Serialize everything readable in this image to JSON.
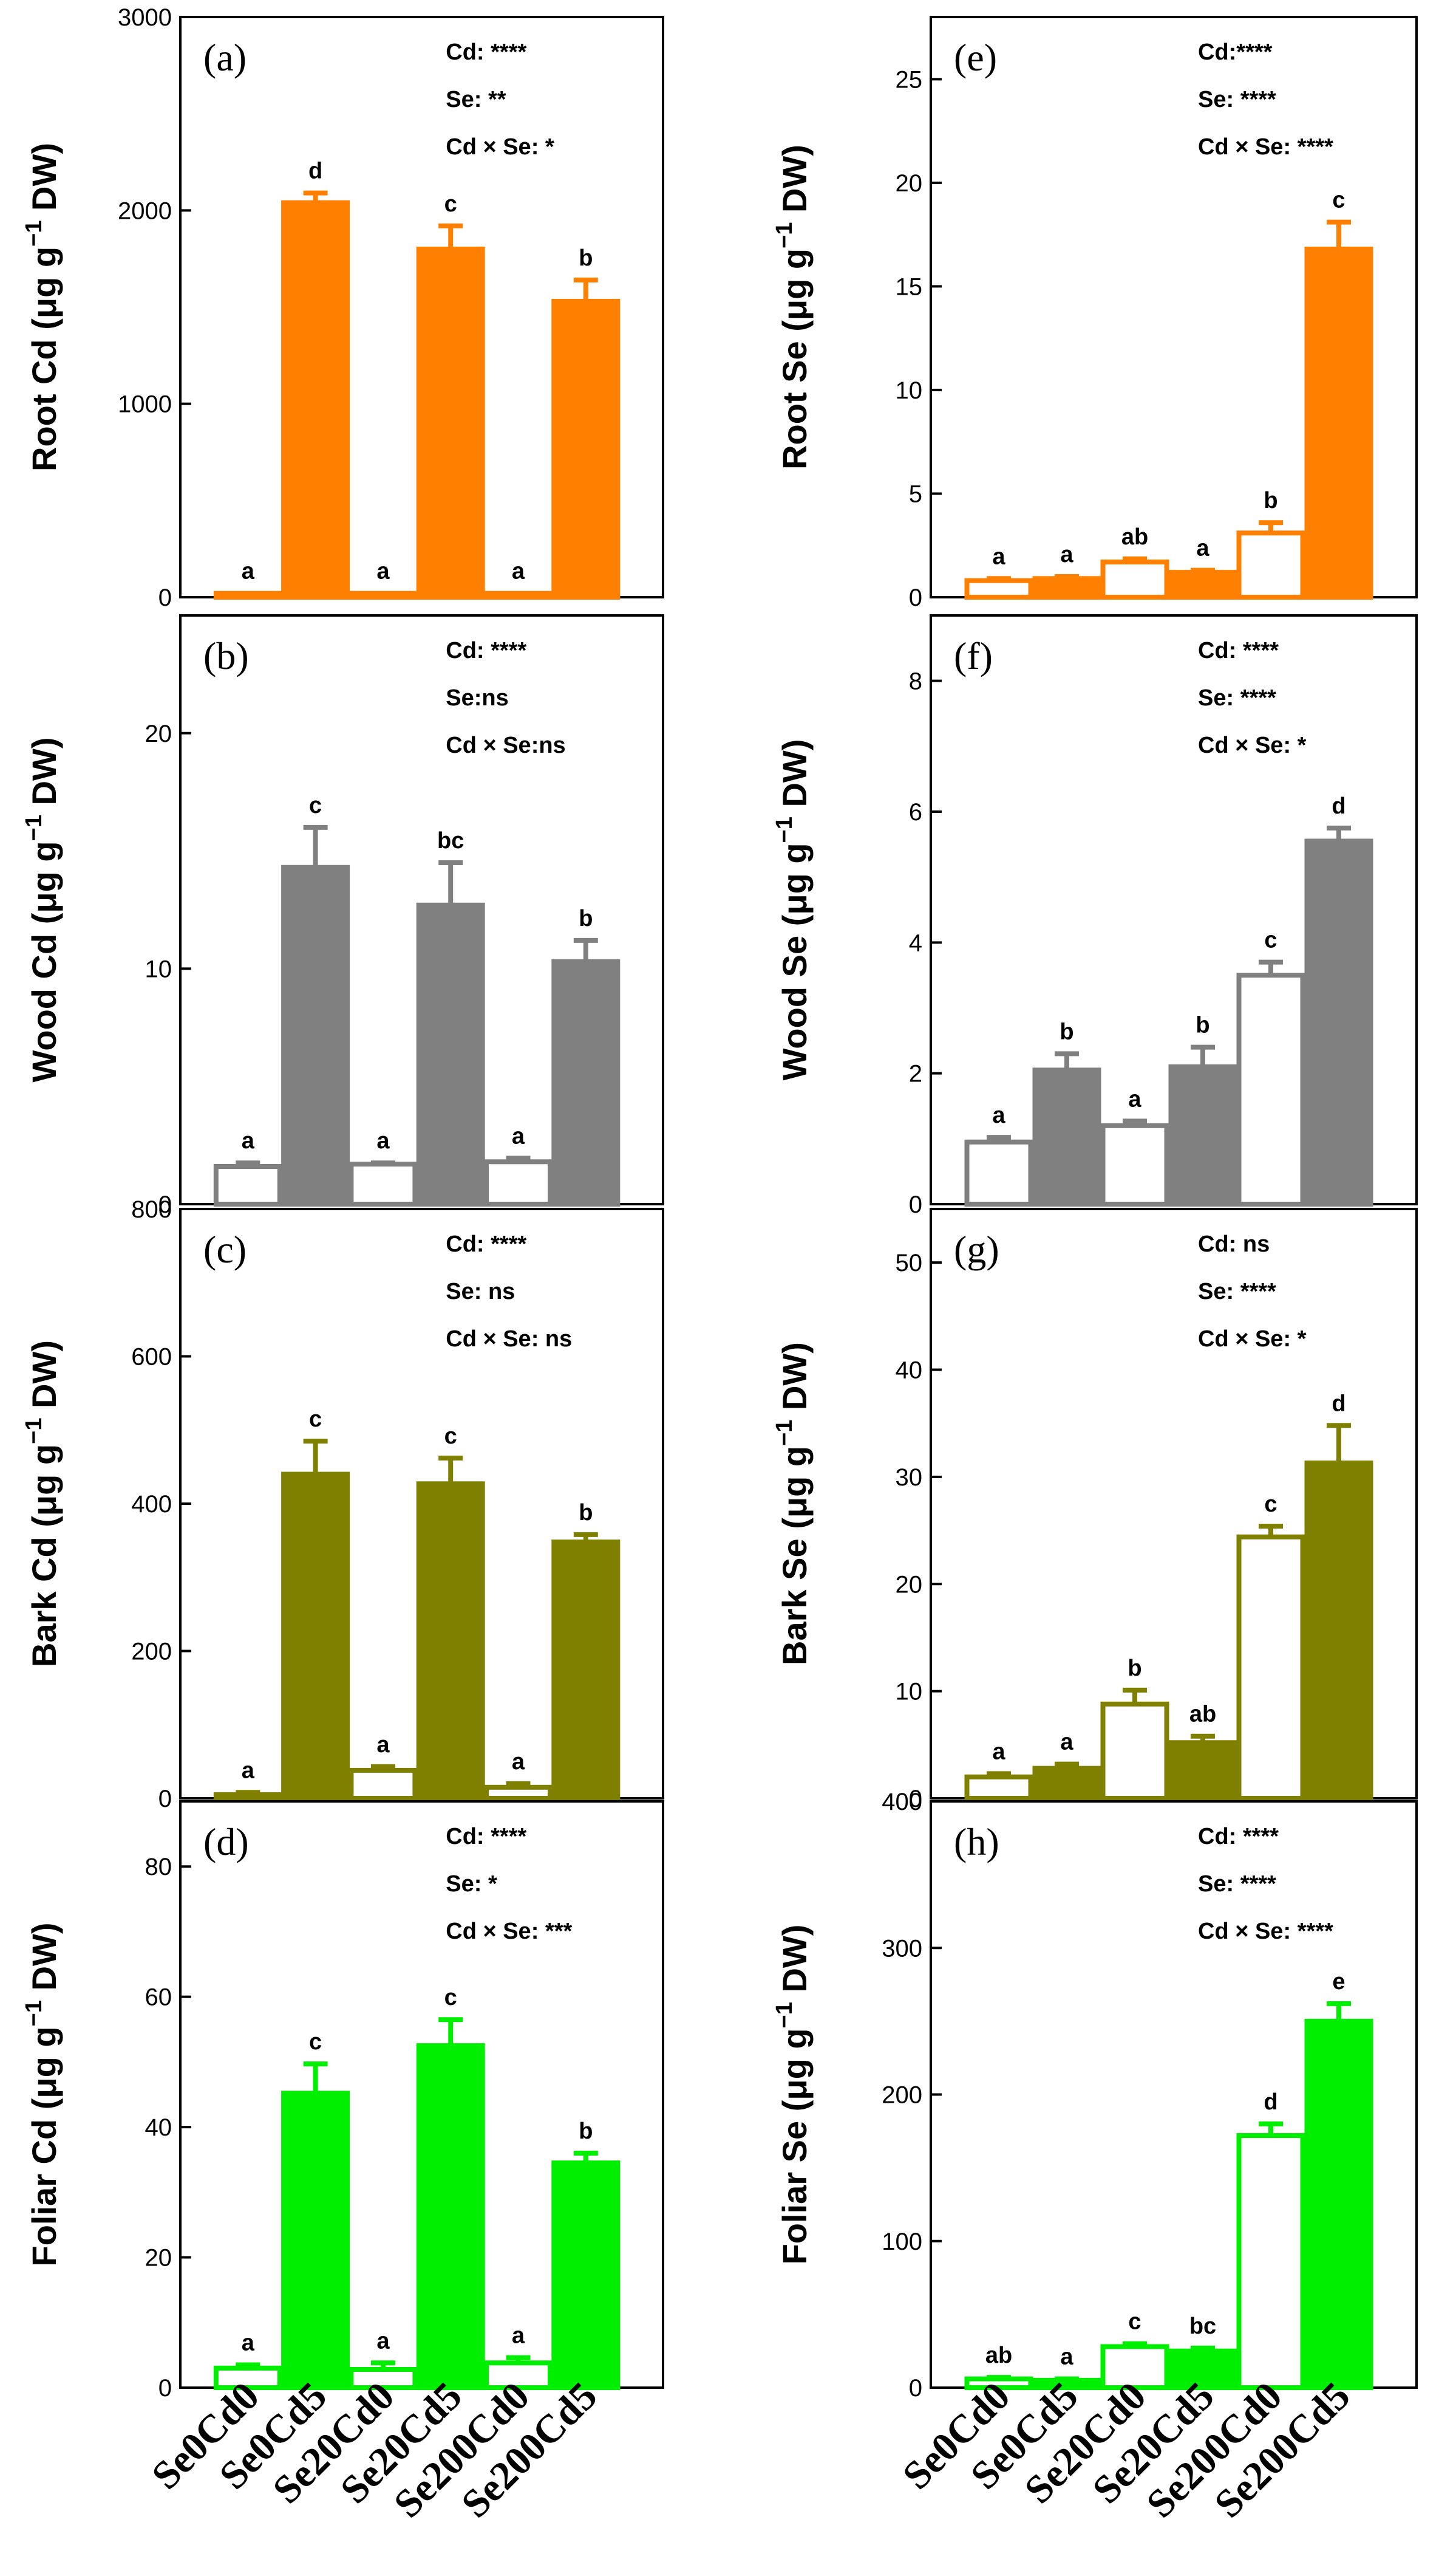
{
  "chart_data": [
    {
      "panel": "a",
      "type": "bar",
      "title": "(a)",
      "ylabel_pre": "Root Cd (",
      "ylabel_unit": "μg g",
      "ylabel_exp": "−1",
      "ylabel_post": " DW)",
      "ylim": [
        0,
        3000
      ],
      "yticks": [
        0,
        1000,
        2000,
        3000
      ],
      "categories": [
        "Se0Cd0",
        "Se0Cd5",
        "Se20Cd0",
        "Se20Cd5",
        "Se200Cd0",
        "Se200Cd5"
      ],
      "values": [
        20,
        2040,
        20,
        1800,
        20,
        1530
      ],
      "errors": [
        0,
        50,
        0,
        120,
        0,
        110
      ],
      "letters": [
        "a",
        "d",
        "a",
        "c",
        "a",
        "b"
      ],
      "annotations": [
        "Cd: ****",
        "Se: **",
        "Cd × Se: *"
      ],
      "color": "#ff8000"
    },
    {
      "panel": "b",
      "type": "bar",
      "title": "(b)",
      "ylabel_pre": "Wood Cd (",
      "ylabel_unit": "μg g",
      "ylabel_exp": "−1",
      "ylabel_post": " DW)",
      "ylim": [
        0,
        25
      ],
      "yticks": [
        0,
        10,
        20
      ],
      "categories": [
        "Se0Cd0",
        "Se0Cd5",
        "Se20Cd0",
        "Se20Cd5",
        "Se200Cd0",
        "Se200Cd5"
      ],
      "values": [
        1.6,
        14.3,
        1.7,
        12.7,
        1.8,
        10.3
      ],
      "errors": [
        0.15,
        1.7,
        0.05,
        1.8,
        0.15,
        0.9
      ],
      "letters": [
        "a",
        "c",
        "a",
        "bc",
        "a",
        "b"
      ],
      "annotations": [
        "Cd: ****",
        "Se:ns",
        "Cd × Se:ns"
      ],
      "color": "#808080"
    },
    {
      "panel": "c",
      "type": "bar",
      "title": "(c)",
      "ylabel_pre": "Bark Cd (",
      "ylabel_unit": "μg g",
      "ylabel_exp": "−1",
      "ylabel_post": " DW)",
      "ylim": [
        0,
        800
      ],
      "yticks": [
        0,
        200,
        400,
        600,
        800
      ],
      "categories": [
        "Se0Cd0",
        "Se0Cd5",
        "Se20Cd0",
        "Se20Cd5",
        "Se200Cd0",
        "Se200Cd5"
      ],
      "values": [
        5,
        440,
        38,
        427,
        15,
        348
      ],
      "errors": [
        3,
        45,
        5,
        35,
        5,
        10
      ],
      "letters": [
        "a",
        "c",
        "a",
        "c",
        "a",
        "b"
      ],
      "annotations": [
        "Cd: ****",
        "Se: ns",
        "Cd × Se: ns"
      ],
      "color": "#808000"
    },
    {
      "panel": "d",
      "type": "bar",
      "title": "(d)",
      "ylabel_pre": "Foliar Cd (",
      "ylabel_unit": "μg g",
      "ylabel_exp": "−1",
      "ylabel_post": " DW)",
      "ylim": [
        0,
        90
      ],
      "yticks": [
        0,
        20,
        40,
        60,
        80
      ],
      "categories": [
        "Se0Cd0",
        "Se0Cd5",
        "Se20Cd0",
        "Se20Cd5",
        "Se200Cd0",
        "Se200Cd5"
      ],
      "values": [
        3.0,
        45.2,
        2.8,
        52.5,
        3.8,
        34.5
      ],
      "errors": [
        0.5,
        4.5,
        1.0,
        4.0,
        0.8,
        1.5
      ],
      "letters": [
        "a",
        "c",
        "a",
        "c",
        "a",
        "b"
      ],
      "annotations": [
        "Cd: ****",
        "Se: *",
        "Cd × Se: ***"
      ],
      "color": "#00ee00"
    },
    {
      "panel": "e",
      "type": "bar",
      "title": "(e)",
      "ylabel_pre": "Root Se (",
      "ylabel_unit": "μg g",
      "ylabel_exp": "−1",
      "ylabel_post": " DW)",
      "ylim": [
        0,
        28
      ],
      "yticks": [
        0,
        5,
        10,
        15,
        20,
        25
      ],
      "categories": [
        "Se0Cd0",
        "Se0Cd5",
        "Se20Cd0",
        "Se20Cd5",
        "Se200Cd0",
        "Se200Cd5"
      ],
      "values": [
        0.8,
        0.9,
        1.7,
        1.2,
        3.1,
        16.8
      ],
      "errors": [
        0.1,
        0.1,
        0.15,
        0.1,
        0.5,
        1.3
      ],
      "letters": [
        "a",
        "a",
        "ab",
        "a",
        "b",
        "c"
      ],
      "annotations": [
        "Cd:****",
        "Se: ****",
        "Cd × Se: ****"
      ],
      "color": "#ff8000"
    },
    {
      "panel": "f",
      "type": "bar",
      "title": "(f)",
      "ylabel_pre": "Wood Se (",
      "ylabel_unit": "μg g",
      "ylabel_exp": "−1",
      "ylabel_post": " DW)",
      "ylim": [
        0,
        9
      ],
      "yticks": [
        0,
        2,
        4,
        6,
        8
      ],
      "categories": [
        "Se0Cd0",
        "Se0Cd5",
        "Se20Cd0",
        "Se20Cd5",
        "Se200Cd0",
        "Se200Cd5"
      ],
      "values": [
        0.95,
        2.05,
        1.2,
        2.1,
        3.5,
        5.55
      ],
      "errors": [
        0.07,
        0.25,
        0.07,
        0.3,
        0.2,
        0.2
      ],
      "letters": [
        "a",
        "b",
        "a",
        "b",
        "c",
        "d"
      ],
      "annotations": [
        "Cd: ****",
        "Se: ****",
        "Cd × Se: *"
      ],
      "color": "#808080"
    },
    {
      "panel": "g",
      "type": "bar",
      "title": "(g)",
      "ylabel_pre": "Bark Se (",
      "ylabel_unit": "μg g",
      "ylabel_exp": "−1",
      "ylabel_post": " DW)",
      "ylim": [
        0,
        55
      ],
      "yticks": [
        0,
        10,
        20,
        30,
        40,
        50
      ],
      "categories": [
        "Se0Cd0",
        "Se0Cd5",
        "Se20Cd0",
        "Se20Cd5",
        "Se200Cd0",
        "Se200Cd5"
      ],
      "values": [
        2.0,
        2.8,
        8.8,
        5.2,
        24.4,
        31.3
      ],
      "errors": [
        0.3,
        0.4,
        1.3,
        0.6,
        1.0,
        3.5
      ],
      "letters": [
        "a",
        "a",
        "b",
        "ab",
        "c",
        "d"
      ],
      "annotations": [
        "Cd: ns",
        "Se: ****",
        "Cd × Se: *"
      ],
      "color": "#808000"
    },
    {
      "panel": "h",
      "type": "bar",
      "title": "(h)",
      "ylabel_pre": "Foliar Se (",
      "ylabel_unit": "μg g",
      "ylabel_exp": "−1",
      "ylabel_post": " DW)",
      "ylim": [
        0,
        400
      ],
      "yticks": [
        0,
        100,
        200,
        300,
        400
      ],
      "categories": [
        "Se0Cd0",
        "Se0Cd5",
        "Se20Cd0",
        "Se20Cd5",
        "Se200Cd0",
        "Se200Cd5"
      ],
      "values": [
        6,
        5,
        28,
        25,
        172,
        250
      ],
      "errors": [
        1,
        1,
        2,
        2,
        8,
        12
      ],
      "letters": [
        "ab",
        "a",
        "c",
        "bc",
        "d",
        "e"
      ],
      "annotations": [
        "Cd: ****",
        "Se: ****",
        "Cd × Se: ****"
      ],
      "color": "#00ee00"
    }
  ]
}
